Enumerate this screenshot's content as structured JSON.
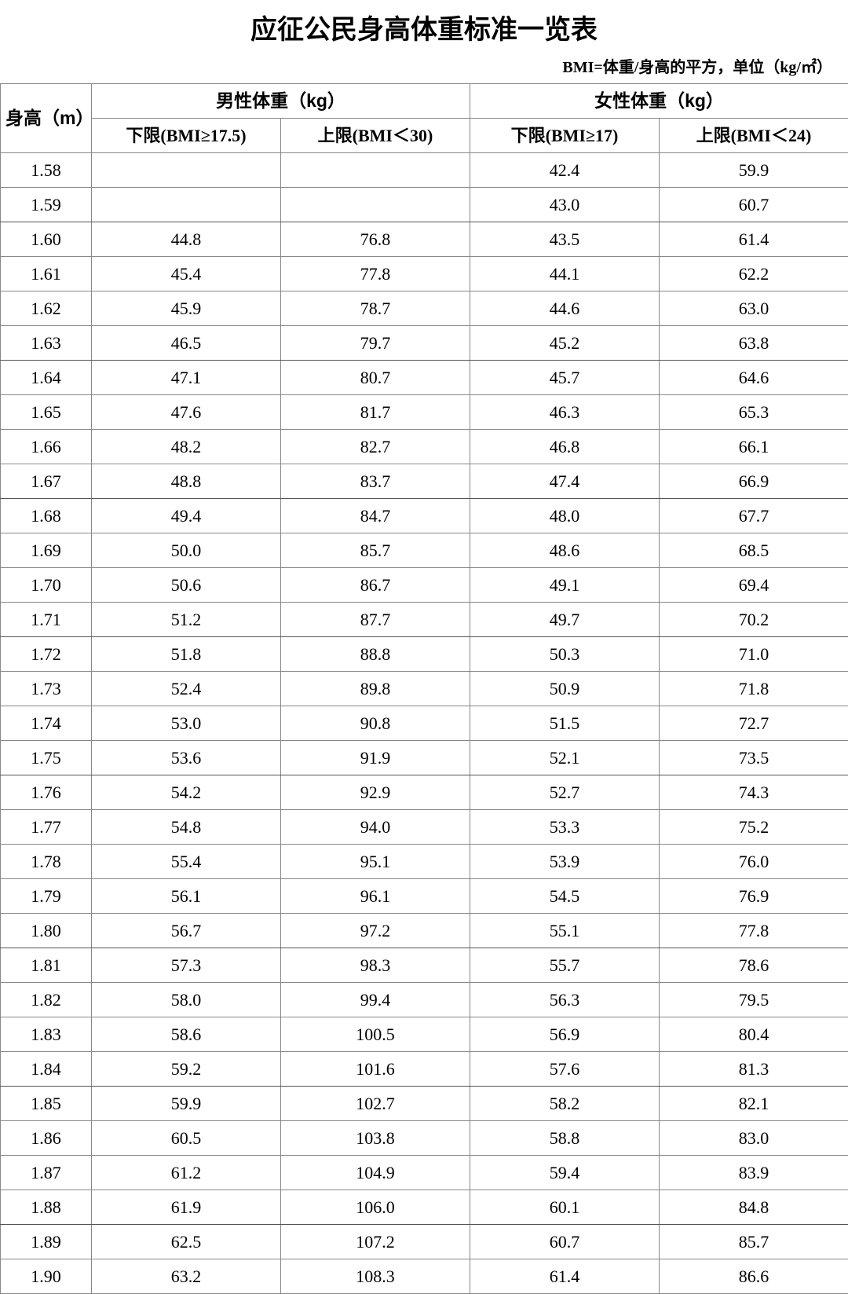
{
  "title": "应征公民身高体重标准一览表",
  "subtitle": "BMI=体重/身高的平方，单位（kg/㎡）",
  "table": {
    "height_header": "身高（m）",
    "male_header": "男性体重（kg）",
    "female_header": "女性体重（kg）",
    "sub_headers": {
      "male_lower": "下限(BMI≥17.5)",
      "male_upper": "上限(BMI＜30)",
      "female_lower": "下限(BMI≥17)",
      "female_upper": "上限(BMI＜24)"
    },
    "rows": [
      {
        "h": "1.58",
        "ml": "",
        "mu": "",
        "fl": "42.4",
        "fu": "59.9",
        "group_end": false
      },
      {
        "h": "1.59",
        "ml": "",
        "mu": "",
        "fl": "43.0",
        "fu": "60.7",
        "group_end": true
      },
      {
        "h": "1.60",
        "ml": "44.8",
        "mu": "76.8",
        "fl": "43.5",
        "fu": "61.4",
        "group_end": false
      },
      {
        "h": "1.61",
        "ml": "45.4",
        "mu": "77.8",
        "fl": "44.1",
        "fu": "62.2",
        "group_end": false
      },
      {
        "h": "1.62",
        "ml": "45.9",
        "mu": "78.7",
        "fl": "44.6",
        "fu": "63.0",
        "group_end": false
      },
      {
        "h": "1.63",
        "ml": "46.5",
        "mu": "79.7",
        "fl": "45.2",
        "fu": "63.8",
        "group_end": true
      },
      {
        "h": "1.64",
        "ml": "47.1",
        "mu": "80.7",
        "fl": "45.7",
        "fu": "64.6",
        "group_end": false
      },
      {
        "h": "1.65",
        "ml": "47.6",
        "mu": "81.7",
        "fl": "46.3",
        "fu": "65.3",
        "group_end": false
      },
      {
        "h": "1.66",
        "ml": "48.2",
        "mu": "82.7",
        "fl": "46.8",
        "fu": "66.1",
        "group_end": false
      },
      {
        "h": "1.67",
        "ml": "48.8",
        "mu": "83.7",
        "fl": "47.4",
        "fu": "66.9",
        "group_end": true
      },
      {
        "h": "1.68",
        "ml": "49.4",
        "mu": "84.7",
        "fl": "48.0",
        "fu": "67.7",
        "group_end": false
      },
      {
        "h": "1.69",
        "ml": "50.0",
        "mu": "85.7",
        "fl": "48.6",
        "fu": "68.5",
        "group_end": false
      },
      {
        "h": "1.70",
        "ml": "50.6",
        "mu": "86.7",
        "fl": "49.1",
        "fu": "69.4",
        "group_end": false
      },
      {
        "h": "1.71",
        "ml": "51.2",
        "mu": "87.7",
        "fl": "49.7",
        "fu": "70.2",
        "group_end": true
      },
      {
        "h": "1.72",
        "ml": "51.8",
        "mu": "88.8",
        "fl": "50.3",
        "fu": "71.0",
        "group_end": false
      },
      {
        "h": "1.73",
        "ml": "52.4",
        "mu": "89.8",
        "fl": "50.9",
        "fu": "71.8",
        "group_end": false
      },
      {
        "h": "1.74",
        "ml": "53.0",
        "mu": "90.8",
        "fl": "51.5",
        "fu": "72.7",
        "group_end": false
      },
      {
        "h": "1.75",
        "ml": "53.6",
        "mu": "91.9",
        "fl": "52.1",
        "fu": "73.5",
        "group_end": true
      },
      {
        "h": "1.76",
        "ml": "54.2",
        "mu": "92.9",
        "fl": "52.7",
        "fu": "74.3",
        "group_end": false
      },
      {
        "h": "1.77",
        "ml": "54.8",
        "mu": "94.0",
        "fl": "53.3",
        "fu": "75.2",
        "group_end": false
      },
      {
        "h": "1.78",
        "ml": "55.4",
        "mu": "95.1",
        "fl": "53.9",
        "fu": "76.0",
        "group_end": false
      },
      {
        "h": "1.79",
        "ml": "56.1",
        "mu": "96.1",
        "fl": "54.5",
        "fu": "76.9",
        "group_end": false
      },
      {
        "h": "1.80",
        "ml": "56.7",
        "mu": "97.2",
        "fl": "55.1",
        "fu": "77.8",
        "group_end": true
      },
      {
        "h": "1.81",
        "ml": "57.3",
        "mu": "98.3",
        "fl": "55.7",
        "fu": "78.6",
        "group_end": false
      },
      {
        "h": "1.82",
        "ml": "58.0",
        "mu": "99.4",
        "fl": "56.3",
        "fu": "79.5",
        "group_end": false
      },
      {
        "h": "1.83",
        "ml": "58.6",
        "mu": "100.5",
        "fl": "56.9",
        "fu": "80.4",
        "group_end": false
      },
      {
        "h": "1.84",
        "ml": "59.2",
        "mu": "101.6",
        "fl": "57.6",
        "fu": "81.3",
        "group_end": true
      },
      {
        "h": "1.85",
        "ml": "59.9",
        "mu": "102.7",
        "fl": "58.2",
        "fu": "82.1",
        "group_end": false
      },
      {
        "h": "1.86",
        "ml": "60.5",
        "mu": "103.8",
        "fl": "58.8",
        "fu": "83.0",
        "group_end": false
      },
      {
        "h": "1.87",
        "ml": "61.2",
        "mu": "104.9",
        "fl": "59.4",
        "fu": "83.9",
        "group_end": false
      },
      {
        "h": "1.88",
        "ml": "61.9",
        "mu": "106.0",
        "fl": "60.1",
        "fu": "84.8",
        "group_end": true
      },
      {
        "h": "1.89",
        "ml": "62.5",
        "mu": "107.2",
        "fl": "60.7",
        "fu": "85.7",
        "group_end": false
      },
      {
        "h": "1.90",
        "ml": "63.2",
        "mu": "108.3",
        "fl": "61.4",
        "fu": "86.6",
        "group_end": false
      }
    ]
  },
  "colors": {
    "border": "#888888",
    "text": "#000000",
    "background": "#ffffff"
  }
}
